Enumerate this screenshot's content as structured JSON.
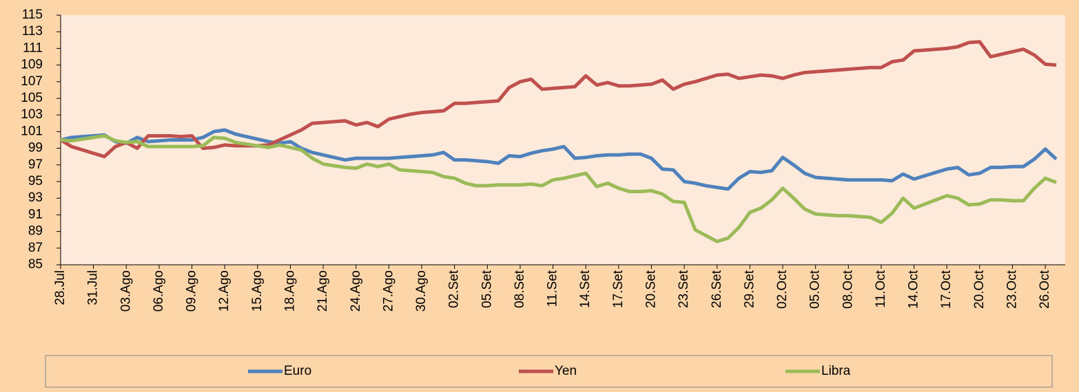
{
  "chart_data": {
    "type": "line",
    "categories": [
      "28.Jul",
      null,
      null,
      "31.Jul",
      null,
      null,
      "03.Ago",
      null,
      null,
      "06.Ago",
      null,
      null,
      "09.Ago",
      null,
      null,
      "12.Ago",
      null,
      null,
      "15.Ago",
      null,
      null,
      "18.Ago",
      null,
      null,
      "21.Ago",
      null,
      null,
      "24.Ago",
      null,
      null,
      "27.Ago",
      null,
      null,
      "30.Ago",
      null,
      null,
      "02.Set",
      null,
      null,
      "05.Set",
      null,
      null,
      "08.Set",
      null,
      null,
      "11.Set",
      null,
      null,
      "14.Set",
      null,
      null,
      "17.Set",
      null,
      null,
      "20.Set",
      null,
      null,
      "23.Set",
      null,
      null,
      "26.Set",
      null,
      null,
      "29.Set",
      null,
      null,
      "02.Oct",
      null,
      null,
      "05.Oct",
      null,
      null,
      "08.Oct",
      null,
      null,
      "11.Oct",
      null,
      null,
      "14.Oct",
      null,
      null,
      "17.Oct",
      null,
      null,
      "20.Oct",
      null,
      null,
      "23.Oct",
      null,
      null,
      "26.Oct",
      null
    ],
    "series": [
      {
        "name": "Euro",
        "color": "#4f81bd",
        "values": [
          100,
          100.3,
          100.4,
          100.5,
          100.6,
          99.8,
          99.6,
          100.3,
          99.8,
          99.9,
          100.0,
          100.0,
          100.0,
          100.3,
          101.0,
          101.2,
          100.7,
          100.4,
          100.1,
          99.8,
          99.6,
          99.8,
          99.0,
          98.5,
          98.2,
          97.9,
          97.6,
          97.8,
          97.8,
          97.8,
          97.8,
          97.9,
          98.0,
          98.1,
          98.2,
          98.5,
          97.6,
          97.6,
          97.5,
          97.4,
          97.2,
          98.1,
          98.0,
          98.4,
          98.7,
          98.9,
          99.2,
          97.8,
          97.9,
          98.1,
          98.2,
          98.2,
          98.3,
          98.3,
          97.8,
          96.5,
          96.4,
          95.0,
          94.8,
          94.5,
          94.3,
          94.1,
          95.4,
          96.2,
          96.1,
          96.3,
          97.9,
          97.0,
          96.0,
          95.5,
          95.4,
          95.3,
          95.2,
          95.2,
          95.2,
          95.2,
          95.1,
          95.9,
          95.3,
          95.7,
          96.1,
          96.5,
          96.7,
          95.8,
          96.0,
          96.7,
          96.7,
          96.8,
          96.8,
          97.7,
          98.9,
          97.7
        ]
      },
      {
        "name": "Yen",
        "color": "#c0504d",
        "values": [
          100,
          99.2,
          98.8,
          98.4,
          98.0,
          99.2,
          99.7,
          99.0,
          100.5,
          100.5,
          100.5,
          100.4,
          100.5,
          99.0,
          99.1,
          99.4,
          99.3,
          99.3,
          99.3,
          99.4,
          100.0,
          100.6,
          101.2,
          102.0,
          102.1,
          102.2,
          102.3,
          101.8,
          102.1,
          101.6,
          102.5,
          102.8,
          103.1,
          103.3,
          103.4,
          103.5,
          104.4,
          104.4,
          104.5,
          104.6,
          104.7,
          106.3,
          107.0,
          107.3,
          106.1,
          106.2,
          106.3,
          106.4,
          107.7,
          106.6,
          106.9,
          106.5,
          106.5,
          106.6,
          106.7,
          107.2,
          106.1,
          106.7,
          107.0,
          107.4,
          107.8,
          107.9,
          107.4,
          107.6,
          107.8,
          107.7,
          107.4,
          107.8,
          108.1,
          108.2,
          108.3,
          108.4,
          108.5,
          108.6,
          108.7,
          108.7,
          109.4,
          109.6,
          110.7,
          110.8,
          110.9,
          111.0,
          111.2,
          111.7,
          111.8,
          110.0,
          110.3,
          110.6,
          110.9,
          110.2,
          109.1,
          109.0
        ]
      },
      {
        "name": "Libra",
        "color": "#9bbb59",
        "values": [
          100,
          99.9,
          100.1,
          100.3,
          100.5,
          99.9,
          99.7,
          99.8,
          99.2,
          99.2,
          99.2,
          99.2,
          99.2,
          99.3,
          100.3,
          100.2,
          99.7,
          99.5,
          99.3,
          99.1,
          99.4,
          99.1,
          98.8,
          97.8,
          97.1,
          96.9,
          96.7,
          96.6,
          97.1,
          96.8,
          97.1,
          96.4,
          96.3,
          96.2,
          96.1,
          95.6,
          95.4,
          94.8,
          94.5,
          94.5,
          94.6,
          94.6,
          94.6,
          94.7,
          94.5,
          95.2,
          95.4,
          95.7,
          96.0,
          94.4,
          94.8,
          94.2,
          93.8,
          93.8,
          93.9,
          93.5,
          92.6,
          92.5,
          89.2,
          88.5,
          87.8,
          88.2,
          89.5,
          91.3,
          91.8,
          92.8,
          94.2,
          93.0,
          91.7,
          91.1,
          91.0,
          90.9,
          90.9,
          90.8,
          90.7,
          90.1,
          91.2,
          93.0,
          91.8,
          92.3,
          92.8,
          93.3,
          93.0,
          92.2,
          92.3,
          92.8,
          92.8,
          92.7,
          92.7,
          94.2,
          95.4,
          94.9
        ]
      }
    ],
    "ylim": [
      85,
      115
    ],
    "yticks": [
      85,
      87,
      89,
      91,
      93,
      95,
      97,
      99,
      101,
      103,
      105,
      107,
      109,
      111,
      113,
      115
    ],
    "legend": "bottom"
  }
}
